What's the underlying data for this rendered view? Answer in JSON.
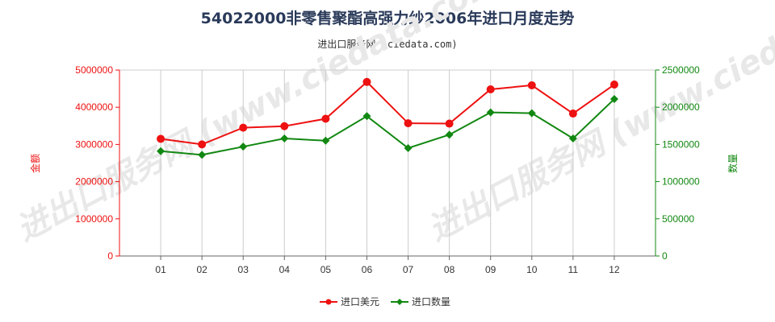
{
  "chart_data": {
    "type": "line",
    "title": "54022000非零售聚酯高强力纱2006年进口月度走势",
    "subtitle": "进出口服务网 (ciedata.com)",
    "watermark": "进出口服务网 (www.ciedata.com)",
    "categories": [
      "01",
      "02",
      "03",
      "04",
      "05",
      "06",
      "07",
      "08",
      "09",
      "10",
      "11",
      "12"
    ],
    "ylabel_left": "金额",
    "ylabel_right": "数量",
    "ylim_left": [
      0,
      5000000
    ],
    "ylim_right": [
      0,
      2500000
    ],
    "yticks_left": [
      "0",
      "1000000",
      "2000000",
      "3000000",
      "4000000",
      "5000000"
    ],
    "yticks_right": [
      "0",
      "500000",
      "1000000",
      "1500000",
      "2000000",
      "2500000"
    ],
    "grid": "vertical",
    "legend_position": "bottom",
    "series": [
      {
        "name": "进口美元",
        "axis": "left",
        "color": "#ee1111",
        "marker": "circle",
        "values": [
          3150000,
          3000000,
          3450000,
          3490000,
          3690000,
          4680000,
          3570000,
          3560000,
          4480000,
          4590000,
          3830000,
          4610000
        ]
      },
      {
        "name": "进口数量",
        "axis": "right",
        "color": "#118811",
        "marker": "diamond",
        "values": [
          1410000,
          1360000,
          1470000,
          1580000,
          1550000,
          1880000,
          1450000,
          1630000,
          1930000,
          1920000,
          1580000,
          2110000
        ]
      }
    ],
    "colors": {
      "left_axis": "#ee1111",
      "right_axis": "#118811",
      "grid": "#cccccc"
    }
  }
}
